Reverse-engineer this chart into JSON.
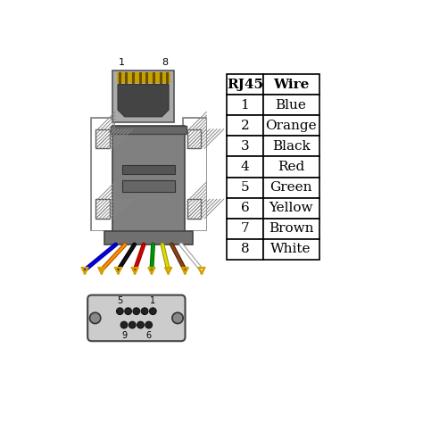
{
  "table_headers": [
    "RJ45",
    "Wire"
  ],
  "table_rows": [
    [
      "1",
      "Blue"
    ],
    [
      "2",
      "Orange"
    ],
    [
      "3",
      "Black"
    ],
    [
      "4",
      "Red"
    ],
    [
      "5",
      "Green"
    ],
    [
      "6",
      "Yellow"
    ],
    [
      "7",
      "Brown"
    ],
    [
      "8",
      "White"
    ]
  ],
  "wire_colors": [
    "#0000EE",
    "#FF8C00",
    "#111111",
    "#DD0000",
    "#009900",
    "#DDDD00",
    "#8B4513",
    "#FFFFFF"
  ],
  "wire_border_colors": [
    "#000088",
    "#AA5500",
    "#000000",
    "#880000",
    "#006600",
    "#999900",
    "#4A2008",
    "#999999"
  ],
  "connector_gray": "#808080",
  "connector_light": "#BBBBBB",
  "connector_dark": "#555555",
  "rj45_body_color": "#AAAAAA",
  "rj45_inner_color": "#666666",
  "rj45_contact_color": "#C8A000",
  "rj45_contact_line": "#6B5000",
  "bg_color": "#FFFFFF",
  "arrow_color": "#D4A000",
  "post_hatch_color": "#CCCCCC",
  "body_recess1_color": "#555555",
  "body_recess2_color": "#666666"
}
